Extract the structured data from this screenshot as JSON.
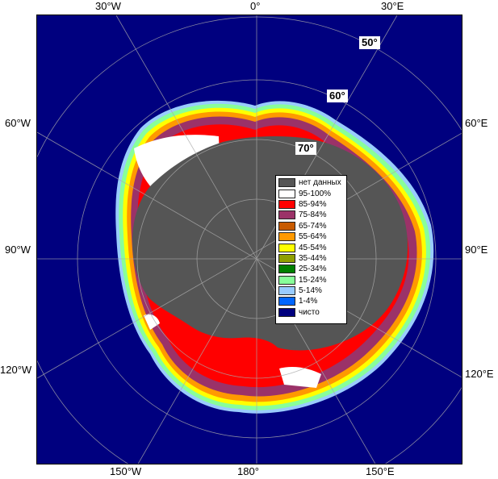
{
  "map": {
    "longitude_labels_top": [
      "30°W",
      "0°",
      "30°E"
    ],
    "longitude_labels_bottom": [
      "150°W",
      "180°",
      "150°E"
    ],
    "longitude_labels_left": [
      "60°W",
      "90°W",
      "120°W"
    ],
    "longitude_labels_right": [
      "60°E",
      "90°E",
      "120°E"
    ],
    "latitude_labels": [
      "50°",
      "60°",
      "70°"
    ],
    "colors": {
      "ocean": "#00007f",
      "land_no_data": "#555555",
      "grid": "#aaaaaa"
    }
  },
  "legend": {
    "items": [
      {
        "label": "нет данных",
        "color": "#555555"
      },
      {
        "label": "95-100%",
        "color": "#ffffff"
      },
      {
        "label": "85-94%",
        "color": "#ff0000"
      },
      {
        "label": "75-84%",
        "color": "#9b3268"
      },
      {
        "label": "65-74%",
        "color": "#c85a00"
      },
      {
        "label": "55-64%",
        "color": "#ff9900"
      },
      {
        "label": "45-54%",
        "color": "#ffff00"
      },
      {
        "label": "35-44%",
        "color": "#8f9f00"
      },
      {
        "label": "25-34%",
        "color": "#008000"
      },
      {
        "label": "15-24%",
        "color": "#88ff99"
      },
      {
        "label": "5-14%",
        "color": "#99ccff"
      },
      {
        "label": "1-4%",
        "color": "#0066ff"
      },
      {
        "label": "чисто",
        "color": "#00007f"
      }
    ]
  }
}
